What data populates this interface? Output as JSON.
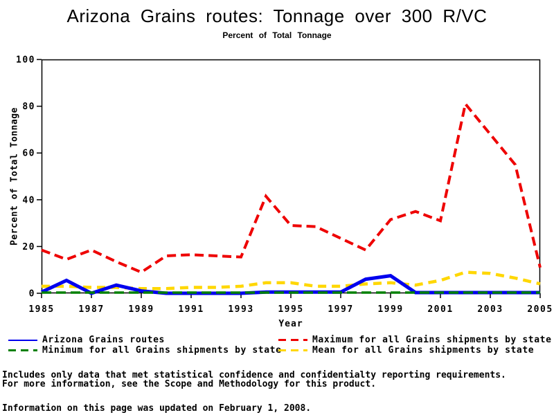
{
  "chart_data": {
    "type": "line",
    "title": "Arizona Grains routes: Tonnage over 300 R/VC",
    "subtitle": "Percent of Total Tonnage",
    "xlabel": "Year",
    "ylabel": "Percent of Total Tonnage",
    "xlim": [
      1985,
      2005
    ],
    "ylim": [
      0,
      100
    ],
    "xticks": [
      1985,
      1987,
      1989,
      1991,
      1993,
      1995,
      1997,
      1999,
      2001,
      2003,
      2005
    ],
    "yticks": [
      0,
      20,
      40,
      60,
      80,
      100
    ],
    "grid": false,
    "frame": true,
    "legend_position": "bottom",
    "x": [
      1985,
      1986,
      1987,
      1988,
      1989,
      1990,
      1991,
      1992,
      1993,
      1994,
      1995,
      1996,
      1997,
      1998,
      1999,
      2000,
      2001,
      2002,
      2003,
      2004,
      2005
    ],
    "series": [
      {
        "name": "Arizona Grains routes",
        "color": "#0000EE",
        "dash": "solid",
        "values": [
          0.5,
          5.5,
          0,
          3.5,
          1,
          0,
          0,
          0,
          0,
          0.5,
          0.5,
          0.5,
          0.5,
          6,
          7.5,
          0.3,
          0.3,
          0.3,
          0.3,
          0.3,
          0.3
        ]
      },
      {
        "name": "Maximum for all Grains shipments by state",
        "color": "#EE0000",
        "dash": "dashed",
        "values": [
          18.5,
          14.5,
          18.5,
          13.5,
          9,
          16,
          16.5,
          16,
          15.5,
          41.5,
          29,
          28.5,
          23.5,
          18.5,
          31.5,
          35,
          31,
          81,
          68,
          55,
          11
        ]
      },
      {
        "name": "Minimum for all Grains shipments by state",
        "color": "#008000",
        "dash": "dashed",
        "values": [
          0.3,
          0.3,
          0.3,
          0.3,
          0.3,
          0.3,
          0.3,
          0.3,
          0.3,
          0.3,
          0.3,
          0.3,
          0.3,
          0.3,
          0.3,
          0.3,
          0.3,
          0.3,
          0.3,
          0.3,
          0.3
        ]
      },
      {
        "name": "Mean for all Grains shipments by state",
        "color": "#FFD700",
        "dash": "dashed",
        "values": [
          3,
          3,
          2.5,
          2.5,
          2,
          2,
          2.5,
          2.5,
          3,
          4.5,
          4.5,
          3,
          3,
          4,
          4.5,
          3.5,
          5.5,
          9,
          8.5,
          6.5,
          4
        ]
      }
    ]
  },
  "legend": {
    "columns": [
      [
        0,
        2
      ],
      [
        1,
        3
      ]
    ]
  },
  "footer": {
    "note1": "Includes only data that met statistical confidence and confidentialty reporting requirements.",
    "note2": "For more information, see the Scope and Methodology for this product.",
    "updated": "Information on this page was updated on February 1, 2008."
  }
}
